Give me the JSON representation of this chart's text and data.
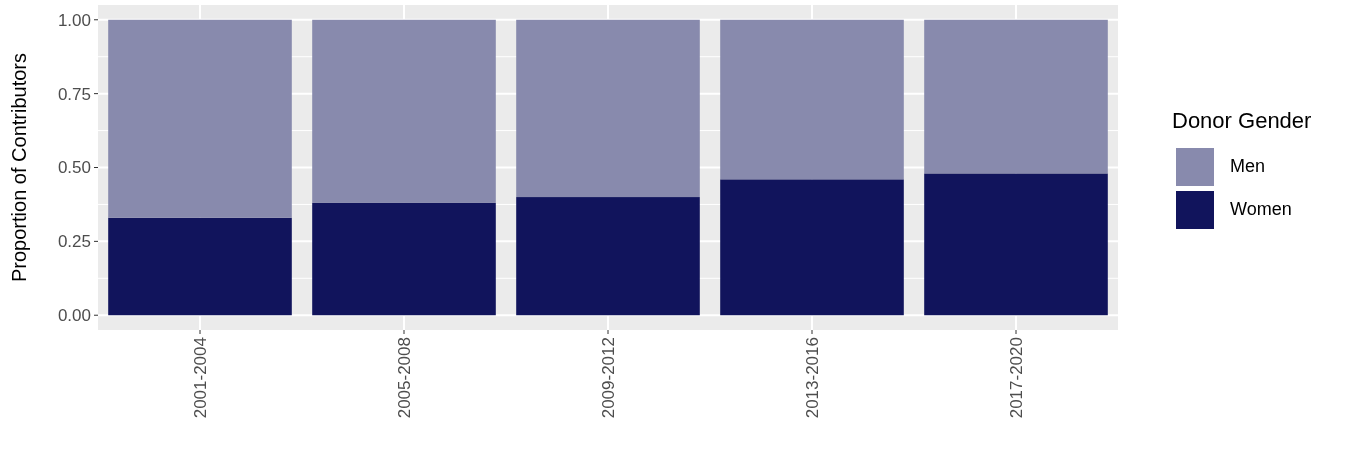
{
  "chart_data": {
    "type": "bar",
    "stacked": true,
    "ylabel": "Proportion of Contributors",
    "legend_title": "Donor Gender",
    "legend": "right",
    "grid": true,
    "categories": [
      "2001-2004",
      "2005-2008",
      "2009-2012",
      "2013-2016",
      "2017-2020"
    ],
    "series": [
      {
        "name": "Women",
        "color": "#11145c",
        "values": [
          0.33,
          0.38,
          0.4,
          0.46,
          0.48
        ]
      },
      {
        "name": "Men",
        "color": "#888aad",
        "values": [
          0.67,
          0.62,
          0.6,
          0.54,
          0.52
        ]
      }
    ],
    "ylim": [
      -0.05,
      1.05
    ],
    "yticks": [
      {
        "value": 0,
        "label": "0.00"
      },
      {
        "value": 0.25,
        "label": "0.25"
      },
      {
        "value": 0.5,
        "label": "0.50"
      },
      {
        "value": 0.75,
        "label": "0.75"
      },
      {
        "value": 1,
        "label": "1.00"
      }
    ]
  }
}
